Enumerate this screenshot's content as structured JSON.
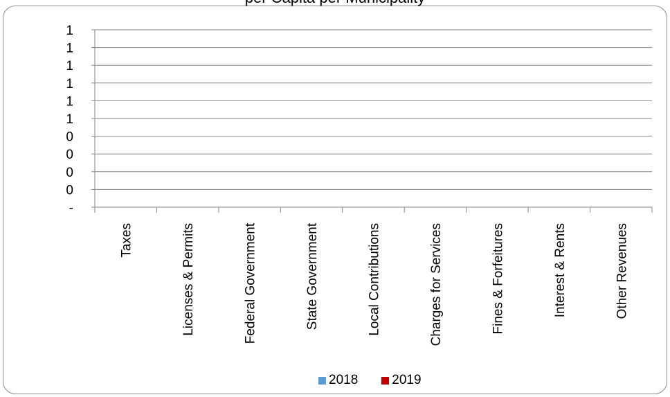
{
  "chart_data": {
    "type": "bar",
    "title": "per Capita per Municipality",
    "categories": [
      "Taxes",
      "Licenses & Permits",
      "Federal Government",
      "State Government",
      "Local Contributions",
      "Charges for Services",
      "Fines & Forfeitures",
      "Interest & Rents",
      "Other Revenues"
    ],
    "y_tick_labels": [
      "1",
      "1",
      "1",
      "1",
      "1",
      "1",
      "0",
      "0",
      "0",
      "0",
      "-"
    ],
    "series": [
      {
        "name": "2018",
        "values": [
          0,
          0,
          0,
          0,
          0,
          0,
          0,
          0,
          0
        ],
        "color": "#5b9bd5"
      },
      {
        "name": "2019",
        "values": [
          0,
          0,
          0,
          0,
          0,
          0,
          0,
          0,
          0
        ],
        "color": "#c00000"
      }
    ],
    "ylim": [
      0,
      1
    ],
    "grid": true,
    "legend_position": "bottom"
  }
}
